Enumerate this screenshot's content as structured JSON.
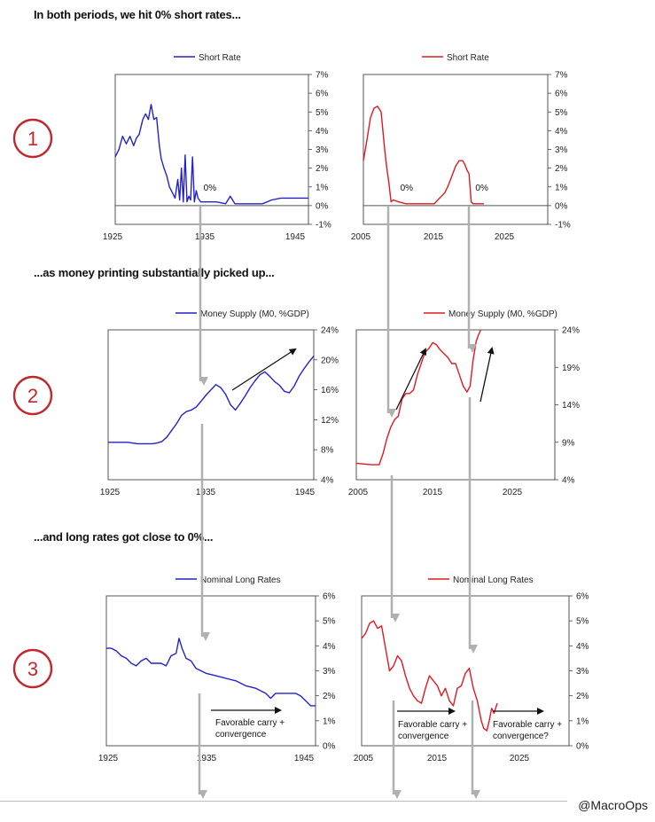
{
  "headings": {
    "h1": "In both periods, we hit 0% short rates...",
    "h2": "...as money printing substantially picked up...",
    "h3": "...and long rates got close to 0%..."
  },
  "credit": "@MacroOps",
  "steps": [
    "1",
    "2",
    "3"
  ],
  "colors": {
    "blue": "#2222cc",
    "red": "#dd1a22",
    "circle": "#c0282d",
    "arrow_gray": "#b0b0b0"
  },
  "chart_data": [
    {
      "id": "short_1925",
      "type": "line",
      "legend": "Short Rate",
      "color": "#2222cc",
      "xlim": [
        1925,
        1946
      ],
      "xticks": [
        1925,
        1935,
        1945
      ],
      "ylim": [
        -1,
        7
      ],
      "yticks": [
        -1,
        0,
        1,
        2,
        3,
        4,
        5,
        6,
        7
      ],
      "yfmt": "pct",
      "zero_line": true,
      "annotations": [
        {
          "text": "0%",
          "x": 1934.6,
          "y": 0.8
        }
      ],
      "x": [
        1925,
        1925.4,
        1925.8,
        1926.2,
        1926.6,
        1927,
        1927.3,
        1927.6,
        1928,
        1928.3,
        1928.6,
        1928.9,
        1929.2,
        1929.5,
        1929.8,
        1930,
        1930.3,
        1930.6,
        1930.9,
        1931.2,
        1931.5,
        1931.8,
        1932.0,
        1932.2,
        1932.4,
        1932.6,
        1932.8,
        1933.0,
        1933.2,
        1933.4,
        1933.6,
        1933.8,
        1934,
        1934.3,
        1935,
        1936,
        1937,
        1937.5,
        1938,
        1939,
        1940,
        1941,
        1942,
        1943,
        1944,
        1945,
        1946
      ],
      "values": [
        2.6,
        3.0,
        3.7,
        3.3,
        3.7,
        3.2,
        3.6,
        3.8,
        4.6,
        4.9,
        4.6,
        5.4,
        4.6,
        4.7,
        3.2,
        2.5,
        2.0,
        1.6,
        1.0,
        0.7,
        0.4,
        1.4,
        0.3,
        2.0,
        0.2,
        2.7,
        0.2,
        0.5,
        0.3,
        2.6,
        0.2,
        0.8,
        0.4,
        0.2,
        0.2,
        0.2,
        0.1,
        0.5,
        0.1,
        0.1,
        0.1,
        0.1,
        0.3,
        0.4,
        0.4,
        0.4,
        0.4
      ]
    },
    {
      "id": "short_2005",
      "type": "line",
      "legend": "Short Rate",
      "color": "#dd1a22",
      "xlim": [
        2005,
        2031
      ],
      "xticks": [
        2005,
        2015,
        2025
      ],
      "ylim": [
        -1,
        7
      ],
      "yticks": [
        -1,
        0,
        1,
        2,
        3,
        4,
        5,
        6,
        7
      ],
      "yfmt": "pct",
      "zero_line": true,
      "annotations": [
        {
          "text": "0%",
          "x": 2010.2,
          "y": 0.8
        },
        {
          "text": "0%",
          "x": 2020.8,
          "y": 0.8
        }
      ],
      "x": [
        2005,
        2005.5,
        2006,
        2006.5,
        2007,
        2007.5,
        2008,
        2008.3,
        2008.6,
        2008.9,
        2009.2,
        2010,
        2011,
        2012,
        2013,
        2014,
        2015,
        2015.5,
        2016,
        2016.5,
        2017,
        2017.5,
        2018,
        2018.5,
        2019,
        2019.3,
        2019.6,
        2019.9,
        2020.2,
        2020.5,
        2021,
        2021.5,
        2022
      ],
      "values": [
        2.4,
        3.5,
        4.7,
        5.2,
        5.3,
        5.0,
        3.0,
        2.0,
        1.2,
        0.2,
        0.3,
        0.2,
        0.1,
        0.1,
        0.1,
        0.1,
        0.1,
        0.3,
        0.5,
        0.7,
        1.1,
        1.6,
        2.1,
        2.4,
        2.4,
        2.2,
        1.9,
        1.7,
        0.2,
        0.1,
        0.1,
        0.1,
        0.1
      ]
    },
    {
      "id": "money_1925",
      "type": "line",
      "legend": "Money Supply (M0, %GDP)",
      "color": "#2222cc",
      "xlim": [
        1925,
        1946
      ],
      "xticks": [
        1925,
        1935,
        1945
      ],
      "ylim": [
        4,
        24
      ],
      "yticks": [
        4,
        8,
        12,
        16,
        20,
        24
      ],
      "yfmt": "pct",
      "zero_line": false,
      "annotations": [],
      "x": [
        1925,
        1926,
        1927,
        1928,
        1929,
        1929.5,
        1930,
        1930.5,
        1931,
        1931.5,
        1932,
        1932.5,
        1933,
        1933.5,
        1934,
        1934.5,
        1935,
        1935.5,
        1936,
        1936.5,
        1937,
        1937.5,
        1938,
        1938.5,
        1939,
        1939.5,
        1940,
        1940.5,
        1941,
        1941.5,
        1942,
        1942.5,
        1943,
        1943.5,
        1944,
        1944.5,
        1945,
        1945.5,
        1946
      ],
      "values": [
        9.0,
        9.0,
        9.0,
        8.8,
        8.8,
        8.8,
        8.9,
        9.1,
        9.7,
        10.6,
        11.5,
        12.6,
        13.1,
        13.3,
        13.7,
        14.5,
        15.3,
        16.0,
        16.7,
        16.3,
        15.4,
        14.0,
        13.3,
        14.2,
        15.2,
        16.3,
        17.2,
        18.0,
        18.4,
        17.8,
        17.1,
        16.6,
        15.8,
        15.6,
        16.5,
        17.8,
        18.8,
        19.7,
        20.5
      ]
    },
    {
      "id": "money_2005",
      "type": "line",
      "legend": "Money Supply (M0, %GDP)",
      "color": "#dd1a22",
      "xlim": [
        2005,
        2031
      ],
      "xticks": [
        2005,
        2015,
        2025
      ],
      "ylim": [
        4,
        24
      ],
      "yticks": [
        4,
        9,
        14,
        19,
        24
      ],
      "yfmt": "pct",
      "zero_line": false,
      "annotations": [],
      "x": [
        2005,
        2006,
        2007,
        2008,
        2008.5,
        2009,
        2009.5,
        2010,
        2010.5,
        2011,
        2011.5,
        2012,
        2012.5,
        2013,
        2013.5,
        2014,
        2014.5,
        2015,
        2015.5,
        2016,
        2016.5,
        2017,
        2017.5,
        2018,
        2018.5,
        2019,
        2019.5,
        2019.9,
        2020.3,
        2020.7,
        2021,
        2021.3
      ],
      "values": [
        6.2,
        6.1,
        6.0,
        6.0,
        7.5,
        9.5,
        11.0,
        12.0,
        12.5,
        14.8,
        15.5,
        15.5,
        16.0,
        18.0,
        19.5,
        21.0,
        21.5,
        22.3,
        22.0,
        21.3,
        20.8,
        20.3,
        19.5,
        19.5,
        18.0,
        16.5,
        15.7,
        16.5,
        20.0,
        22.5,
        23.3,
        24.0
      ]
    },
    {
      "id": "long_1925",
      "type": "line",
      "legend": "Nominal Long Rates",
      "color": "#2222cc",
      "xlim": [
        1925,
        1946
      ],
      "xticks": [
        1925,
        1935,
        1945
      ],
      "ylim": [
        0,
        6
      ],
      "yticks": [
        0,
        1,
        2,
        3,
        4,
        5,
        6
      ],
      "yfmt": "pct",
      "zero_line": false,
      "annotations": [],
      "x": [
        1925,
        1925.5,
        1926,
        1926.5,
        1927,
        1927.5,
        1928,
        1928.5,
        1929,
        1929.5,
        1930,
        1930.5,
        1931,
        1931.5,
        1932,
        1932.3,
        1932.6,
        1933,
        1933.5,
        1934,
        1935,
        1936,
        1937,
        1938,
        1939,
        1940,
        1941,
        1941.5,
        1942,
        1943,
        1944,
        1944.5,
        1945,
        1945.5,
        1946
      ],
      "values": [
        3.9,
        3.9,
        3.8,
        3.6,
        3.5,
        3.3,
        3.2,
        3.4,
        3.5,
        3.3,
        3.3,
        3.3,
        3.2,
        3.6,
        3.7,
        4.3,
        3.9,
        3.5,
        3.4,
        3.1,
        2.9,
        2.8,
        2.7,
        2.6,
        2.4,
        2.3,
        2.1,
        1.9,
        2.1,
        2.1,
        2.1,
        2.0,
        1.8,
        1.6,
        1.6
      ]
    },
    {
      "id": "long_2005",
      "type": "line",
      "legend": "Nominal Long Rates",
      "color": "#dd1a22",
      "xlim": [
        2005,
        2031
      ],
      "xticks": [
        2005,
        2015,
        2025
      ],
      "ylim": [
        0,
        6
      ],
      "yticks": [
        0,
        1,
        2,
        3,
        4,
        5,
        6
      ],
      "yfmt": "pct",
      "zero_line": false,
      "annotations": [],
      "x": [
        2005,
        2005.5,
        2006,
        2006.5,
        2007,
        2007.5,
        2008,
        2008.5,
        2009,
        2009.5,
        2010,
        2010.5,
        2011,
        2011.5,
        2012,
        2012.5,
        2013,
        2013.5,
        2014,
        2014.5,
        2015,
        2015.5,
        2016,
        2016.5,
        2017,
        2017.5,
        2018,
        2018.5,
        2019,
        2019.5,
        2020,
        2020.3,
        2020.7,
        2021,
        2021.3,
        2021.6,
        2022
      ],
      "values": [
        4.3,
        4.5,
        4.9,
        5.0,
        4.7,
        4.8,
        3.9,
        3.0,
        3.2,
        3.6,
        3.4,
        2.8,
        2.3,
        2.0,
        1.8,
        1.7,
        2.3,
        2.8,
        2.6,
        2.4,
        2.0,
        2.3,
        1.8,
        1.6,
        2.3,
        2.4,
        2.9,
        3.1,
        2.3,
        1.8,
        1.0,
        0.7,
        0.6,
        1.0,
        1.5,
        1.3,
        1.7
      ]
    }
  ],
  "notes": {
    "left": [
      "Favorable carry +",
      "convergence"
    ],
    "right_a": [
      "Favorable carry +",
      "convergence"
    ],
    "right_b": [
      "Favorable carry +",
      "convergence?"
    ]
  }
}
